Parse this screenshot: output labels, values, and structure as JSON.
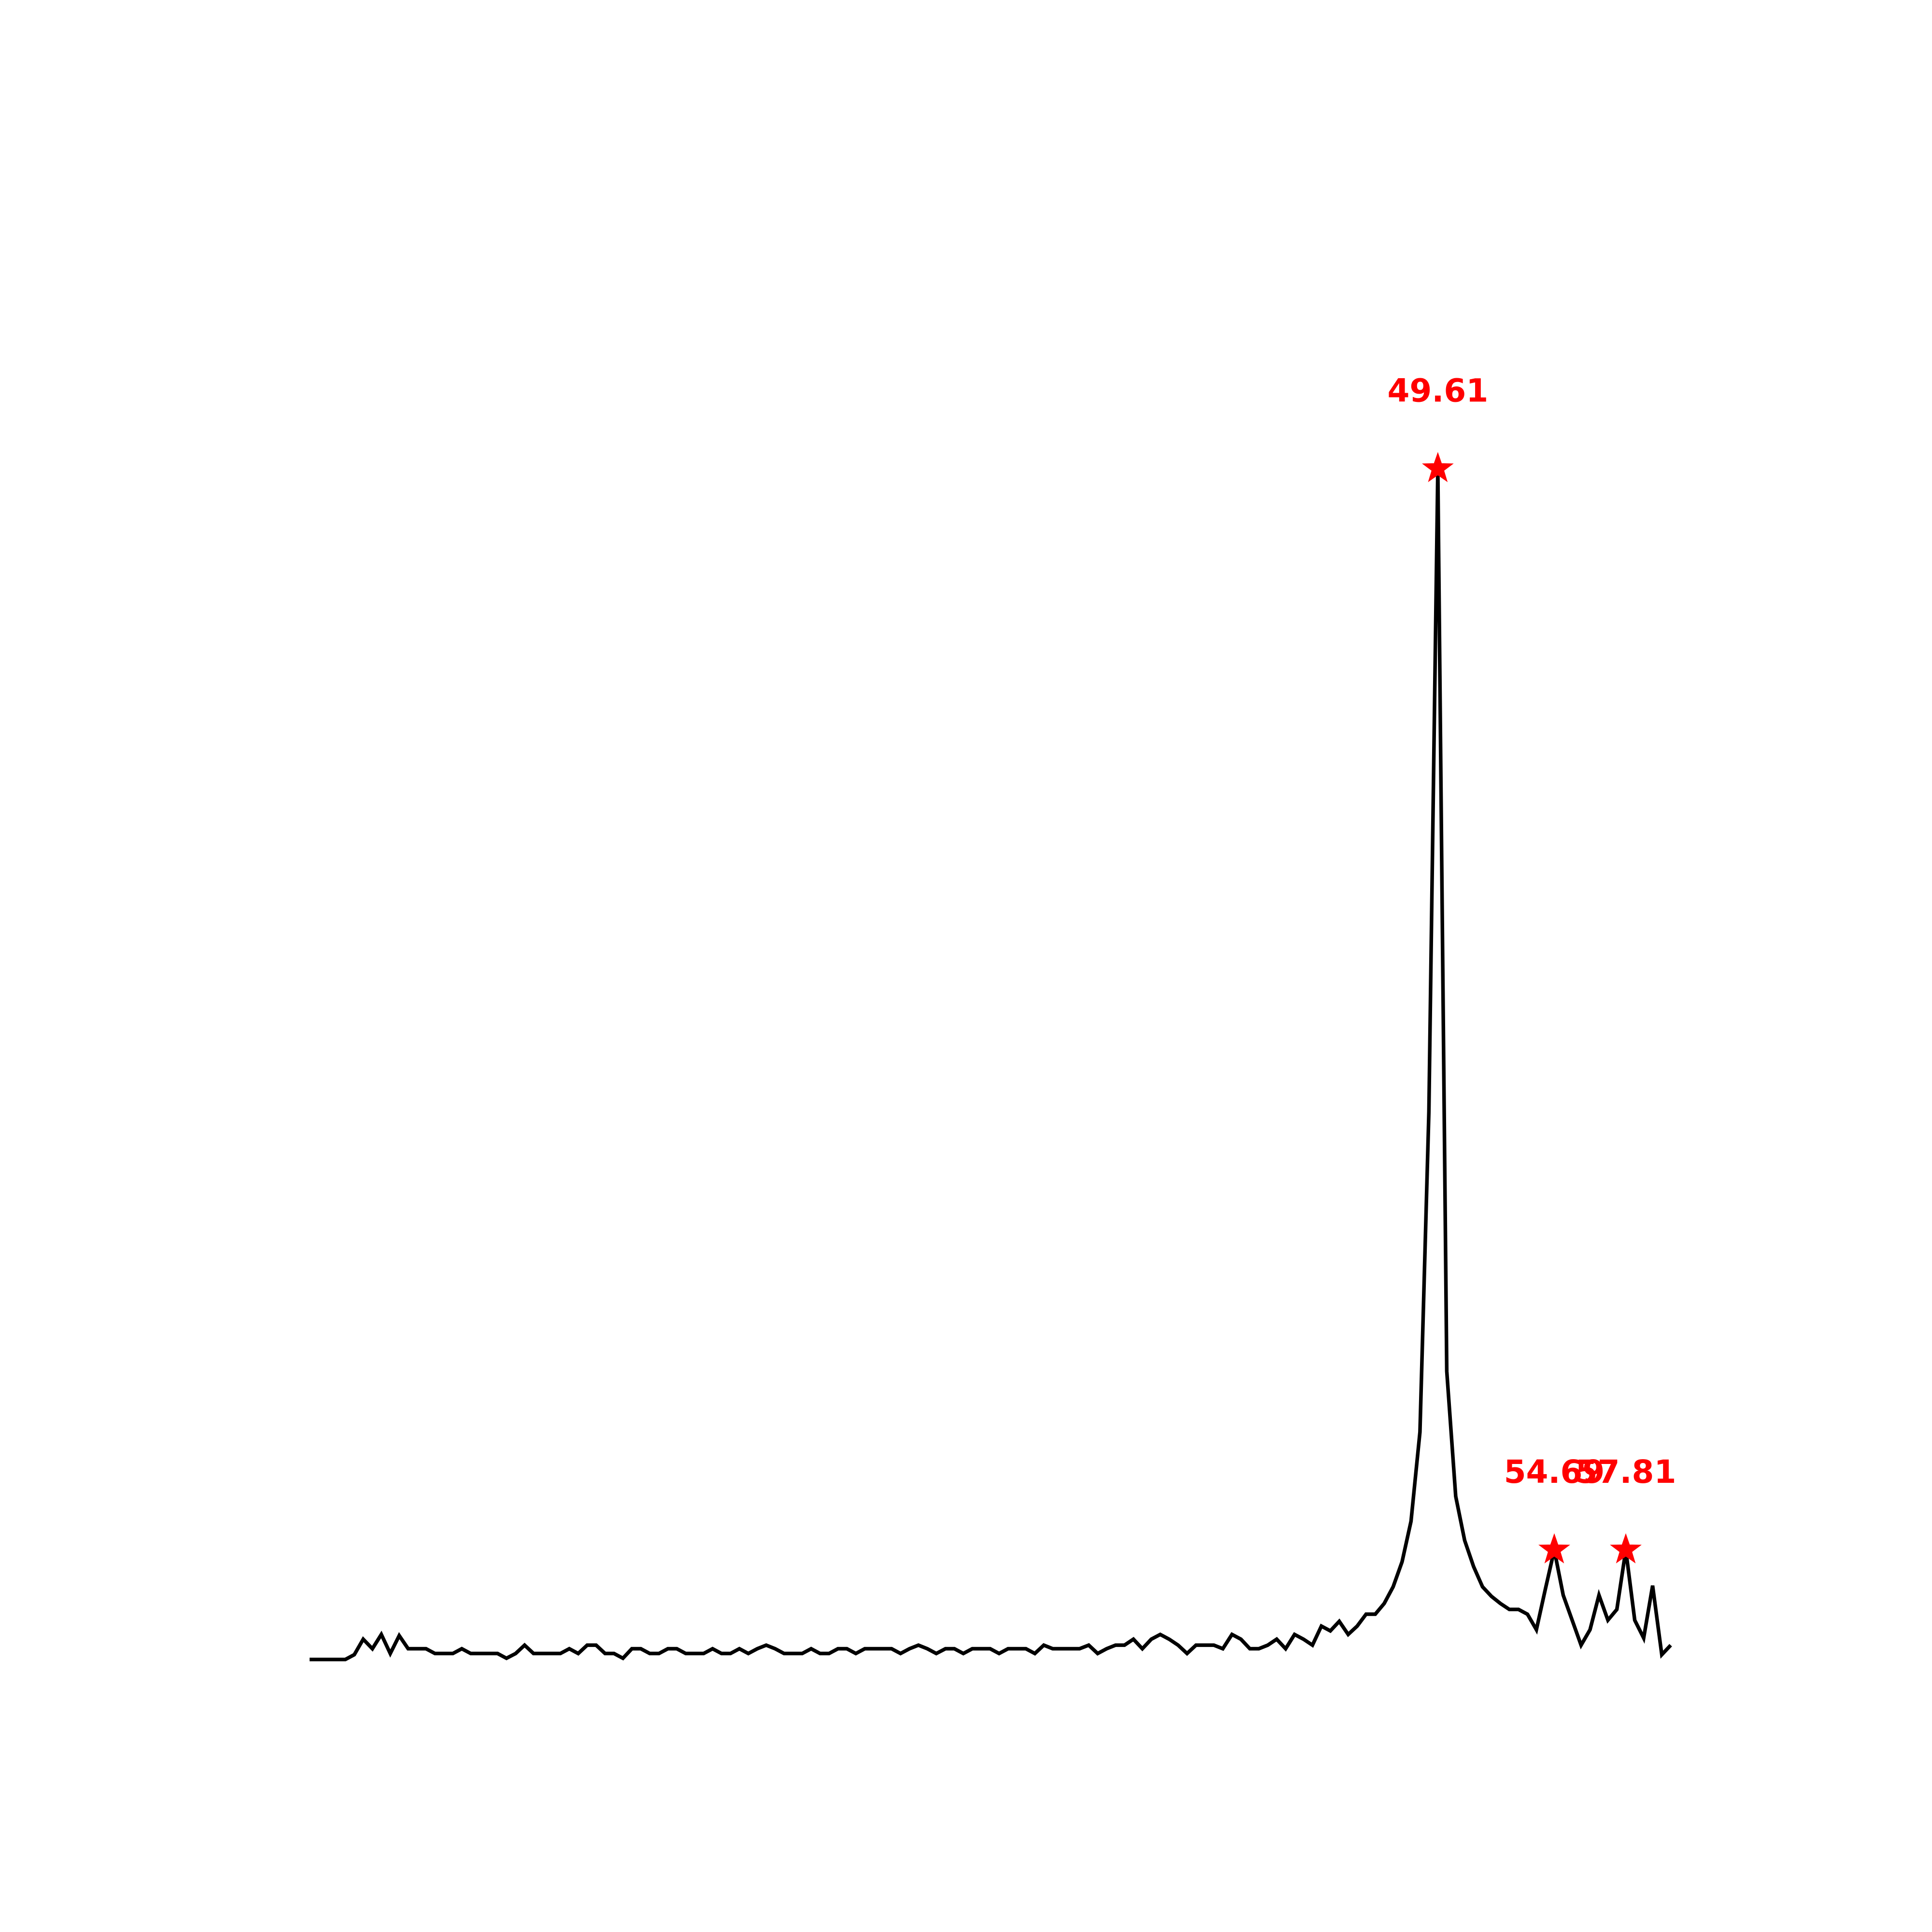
{
  "chart_data": {
    "type": "line",
    "x": [
      0.39,
      0.78,
      1.17,
      1.56,
      1.95,
      2.34,
      2.73,
      3.13,
      3.52,
      3.91,
      4.3,
      4.69,
      5.08,
      5.47,
      5.86,
      6.25,
      6.64,
      7.03,
      7.42,
      7.81,
      8.2,
      8.59,
      8.98,
      9.38,
      9.77,
      10.16,
      10.55,
      10.94,
      11.33,
      11.72,
      12.11,
      12.5,
      12.89,
      13.28,
      13.67,
      14.06,
      14.45,
      14.84,
      15.23,
      15.63,
      16.02,
      16.41,
      16.8,
      17.19,
      17.58,
      17.97,
      18.36,
      18.75,
      19.14,
      19.53,
      19.92,
      20.31,
      20.7,
      21.09,
      21.48,
      21.88,
      22.27,
      22.66,
      23.05,
      23.44,
      23.83,
      24.22,
      24.61,
      25,
      25.39,
      25.78,
      26.17,
      26.56,
      26.95,
      27.34,
      27.73,
      28.13,
      28.52,
      28.91,
      29.3,
      29.69,
      30.08,
      30.47,
      30.86,
      31.25,
      31.64,
      32.03,
      32.42,
      32.81,
      33.2,
      33.59,
      33.98,
      34.38,
      34.77,
      35.16,
      35.55,
      35.94,
      36.33,
      36.72,
      37.11,
      37.5,
      37.89,
      38.28,
      38.67,
      39.06,
      39.45,
      39.84,
      40.23,
      40.63,
      41.02,
      41.41,
      41.8,
      42.19,
      42.58,
      42.97,
      43.36,
      43.75,
      44.14,
      44.53,
      44.92,
      45.31,
      45.7,
      46.09,
      46.48,
      46.88,
      47.27,
      47.66,
      48.05,
      48.44,
      48.83,
      49.22,
      49.61,
      50,
      50.39,
      50.78,
      51.17,
      51.56,
      51.95,
      52.34,
      52.73,
      53.13,
      53.52,
      53.91,
      54.3,
      54.69,
      55.08,
      55.47,
      55.86,
      56.25,
      56.64,
      57.03,
      57.42,
      57.81,
      58.2,
      58.59,
      58.98,
      59.38,
      59.77
    ],
    "values": [
      0,
      0,
      0,
      0,
      0,
      0.004,
      0.017,
      0.009,
      0.021,
      0.005,
      0.02,
      0.009,
      0.009,
      0.009,
      0.005,
      0.005,
      0.005,
      0.009,
      0.005,
      0.005,
      0.005,
      0.005,
      0.001,
      0.005,
      0.012,
      0.005,
      0.005,
      0.005,
      0.005,
      0.009,
      0.005,
      0.012,
      0.012,
      0.005,
      0.005,
      0.001,
      0.009,
      0.009,
      0.005,
      0.005,
      0.009,
      0.009,
      0.005,
      0.005,
      0.005,
      0.009,
      0.005,
      0.005,
      0.009,
      0.005,
      0.009,
      0.012,
      0.009,
      0.005,
      0.005,
      0.005,
      0.009,
      0.005,
      0.005,
      0.009,
      0.009,
      0.005,
      0.009,
      0.009,
      0.009,
      0.009,
      0.005,
      0.009,
      0.012,
      0.009,
      0.005,
      0.009,
      0.009,
      0.005,
      0.009,
      0.009,
      0.009,
      0.005,
      0.009,
      0.009,
      0.009,
      0.005,
      0.012,
      0.009,
      0.009,
      0.009,
      0.009,
      0.012,
      0.005,
      0.009,
      0.012,
      0.012,
      0.017,
      0.009,
      0.017,
      0.021,
      0.017,
      0.012,
      0.005,
      0.012,
      0.012,
      0.012,
      0.009,
      0.021,
      0.017,
      0.009,
      0.009,
      0.012,
      0.017,
      0.009,
      0.021,
      0.017,
      0.012,
      0.028,
      0.024,
      0.032,
      0.021,
      0.028,
      0.038,
      0.038,
      0.047,
      0.061,
      0.082,
      0.116,
      0.191,
      0.46,
      1,
      0.242,
      0.137,
      0.1,
      0.078,
      0.061,
      0.053,
      0.047,
      0.042,
      0.042,
      0.038,
      0.025,
      0.059,
      0.092,
      0.054,
      0.033,
      0.012,
      0.025,
      0.054,
      0.033,
      0.042,
      0.092,
      0.033,
      0.018,
      0.062,
      0.004,
      0.012
    ],
    "color": "#000000",
    "peaks": [
      49.61,
      54.69,
      57.81
    ],
    "peak_color": "#ff0000",
    "xlim": [
      -2.58,
      62.74
    ],
    "ylim": [
      -0.05,
      1.05
    ]
  }
}
